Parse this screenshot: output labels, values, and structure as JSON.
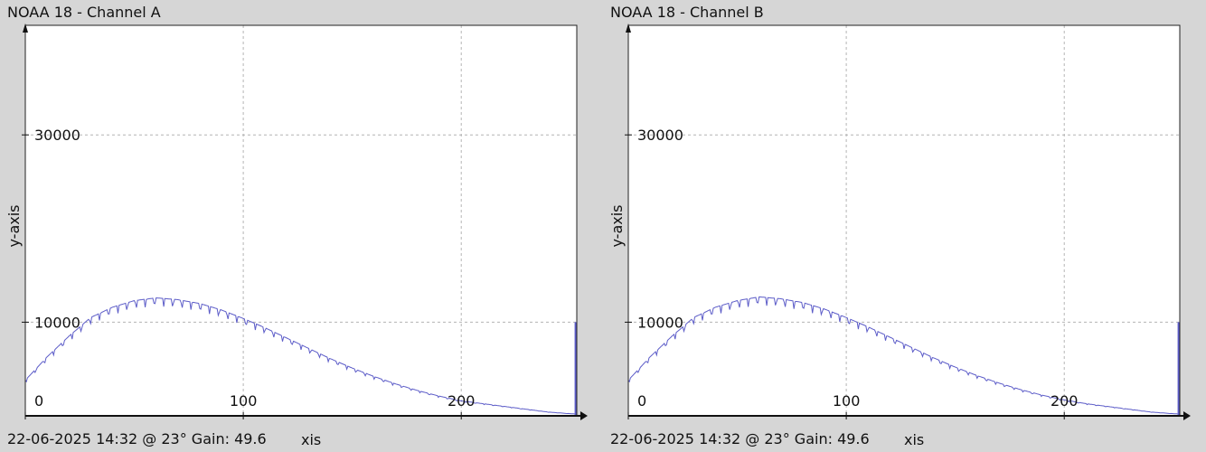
{
  "chart_data": [
    {
      "type": "line",
      "title": "NOAA 18 - Channel A",
      "ylabel": "y-axis",
      "xlabel_fragment": "xis",
      "footer": "22-06-2025 14:32 @ 23° Gain: 49.6",
      "x_ticks": [
        {
          "value": 0,
          "label": "0"
        },
        {
          "value": 100,
          "label": "100"
        },
        {
          "value": 200,
          "label": "200"
        }
      ],
      "y_ticks": [
        {
          "value": 10000,
          "label": "10000"
        },
        {
          "value": 30000,
          "label": "30000"
        }
      ],
      "xlim": [
        0,
        253
      ],
      "ylim": [
        0,
        41700
      ],
      "grid": true,
      "line_color": "#5c5cc8",
      "series": [
        {
          "x": [
            0,
            10,
            20,
            30,
            40,
            50,
            60,
            70,
            80,
            90,
            100,
            110,
            120,
            130,
            140,
            150,
            160,
            170,
            180,
            190,
            200,
            210,
            220,
            230,
            240,
            252
          ],
          "y": [
            3800,
            6300,
            8500,
            10500,
            11600,
            12300,
            12600,
            12400,
            12000,
            11300,
            10400,
            9400,
            8300,
            7200,
            6100,
            5100,
            4200,
            3400,
            2700,
            2100,
            1600,
            1300,
            1000,
            700,
            400,
            200
          ]
        }
      ]
    },
    {
      "type": "line",
      "title": "NOAA 18 - Channel B",
      "ylabel": "y-axis",
      "xlabel_fragment": "xis",
      "footer": "22-06-2025 14:32 @ 23° Gain: 49.6",
      "x_ticks": [
        {
          "value": 0,
          "label": "0"
        },
        {
          "value": 100,
          "label": "100"
        },
        {
          "value": 200,
          "label": "200"
        }
      ],
      "y_ticks": [
        {
          "value": 10000,
          "label": "10000"
        },
        {
          "value": 30000,
          "label": "30000"
        }
      ],
      "xlim": [
        0,
        253
      ],
      "ylim": [
        0,
        41700
      ],
      "grid": true,
      "line_color": "#5c5cc8",
      "series": [
        {
          "x": [
            0,
            10,
            20,
            30,
            40,
            50,
            60,
            70,
            80,
            90,
            100,
            110,
            120,
            130,
            140,
            150,
            160,
            170,
            180,
            190,
            200,
            210,
            220,
            230,
            240,
            252
          ],
          "y": [
            3800,
            6300,
            8500,
            10500,
            11600,
            12300,
            12700,
            12500,
            12100,
            11400,
            10500,
            9500,
            8400,
            7300,
            6200,
            5200,
            4300,
            3500,
            2800,
            2200,
            1700,
            1300,
            1000,
            700,
            400,
            200
          ]
        }
      ]
    }
  ]
}
